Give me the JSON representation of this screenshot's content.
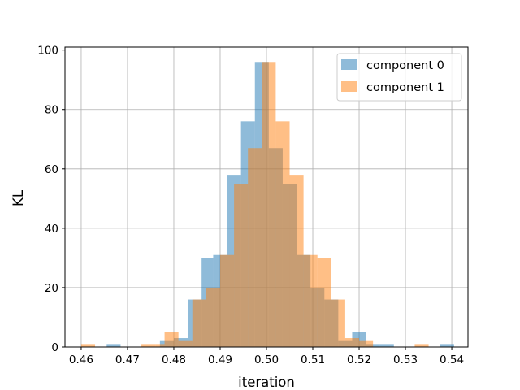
{
  "chart_data": {
    "type": "histogram",
    "title": "",
    "xlabel": "iteration",
    "ylabel": "KL",
    "xlim": [
      0.4565,
      0.5435
    ],
    "ylim": [
      0,
      101
    ],
    "xticks": [
      "0.46",
      "0.47",
      "0.48",
      "0.49",
      "0.50",
      "0.51",
      "0.52",
      "0.53",
      "0.54"
    ],
    "xtick_values": [
      0.46,
      0.47,
      0.48,
      0.49,
      0.5,
      0.51,
      0.52,
      0.53,
      0.54
    ],
    "yticks": [
      "0",
      "20",
      "40",
      "60",
      "80",
      "100"
    ],
    "ytick_values": [
      0,
      20,
      40,
      60,
      80,
      100
    ],
    "grid": true,
    "legend_position": "top-right",
    "series": [
      {
        "name": "component 0",
        "color": "#1f77b4",
        "alpha": 0.5,
        "bins": [
          [
            0.4655,
            0.4685,
            1
          ],
          [
            0.477,
            0.48,
            2
          ],
          [
            0.48,
            0.483,
            3
          ],
          [
            0.483,
            0.486,
            16
          ],
          [
            0.486,
            0.4885,
            30
          ],
          [
            0.4885,
            0.4915,
            31
          ],
          [
            0.4915,
            0.4945,
            58
          ],
          [
            0.4945,
            0.4975,
            76
          ],
          [
            0.4975,
            0.5005,
            96
          ],
          [
            0.5005,
            0.5035,
            67
          ],
          [
            0.5035,
            0.5065,
            55
          ],
          [
            0.5065,
            0.5095,
            31
          ],
          [
            0.5095,
            0.5125,
            20
          ],
          [
            0.5125,
            0.5155,
            16
          ],
          [
            0.5155,
            0.5185,
            2
          ],
          [
            0.5185,
            0.5215,
            5
          ],
          [
            0.5215,
            0.5245,
            1
          ],
          [
            0.5245,
            0.5275,
            1
          ],
          [
            0.5375,
            0.5405,
            1
          ]
        ]
      },
      {
        "name": "component 1",
        "color": "#ff7f0e",
        "alpha": 0.5,
        "bins": [
          [
            0.46,
            0.463,
            1
          ],
          [
            0.473,
            0.476,
            1
          ],
          [
            0.476,
            0.478,
            1
          ],
          [
            0.478,
            0.481,
            5
          ],
          [
            0.481,
            0.484,
            2
          ],
          [
            0.484,
            0.487,
            16
          ],
          [
            0.487,
            0.49,
            20
          ],
          [
            0.49,
            0.493,
            31
          ],
          [
            0.493,
            0.496,
            55
          ],
          [
            0.496,
            0.499,
            67
          ],
          [
            0.499,
            0.502,
            96
          ],
          [
            0.502,
            0.505,
            76
          ],
          [
            0.505,
            0.508,
            58
          ],
          [
            0.508,
            0.511,
            31
          ],
          [
            0.511,
            0.514,
            30
          ],
          [
            0.514,
            0.517,
            16
          ],
          [
            0.517,
            0.52,
            3
          ],
          [
            0.52,
            0.523,
            2
          ],
          [
            0.532,
            0.535,
            1
          ]
        ]
      }
    ]
  },
  "style": {
    "grid_color": "#b0b0b0",
    "axis_color": "#000000",
    "legend_border_color": "#cccccc"
  }
}
